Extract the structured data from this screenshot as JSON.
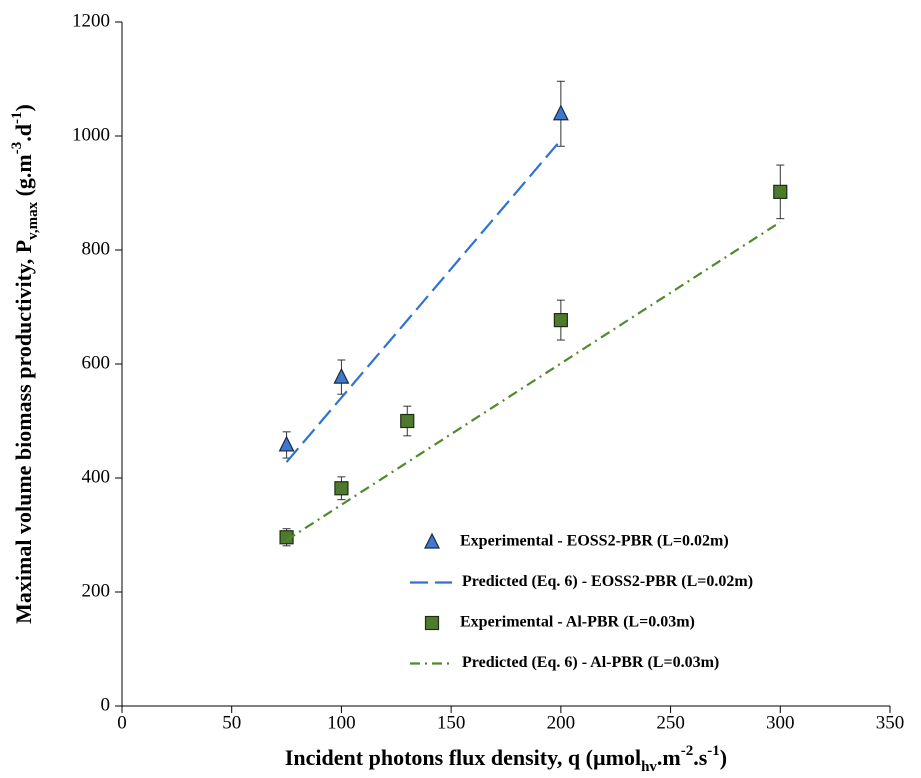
{
  "chart_data": {
    "type": "scatter",
    "xlabel_parts": [
      "Incident photons flux density, q (µmol",
      "hv",
      ".m",
      "-2",
      ".s",
      "-1",
      ")"
    ],
    "xlabel_styles": [
      "normal",
      "sub",
      "normal",
      "sup",
      "normal",
      "sup",
      "normal"
    ],
    "ylabel_parts": [
      "Maximal volume biomass productivity, P",
      "v,max",
      " (g.m",
      "-3",
      ".d",
      "-1",
      ")"
    ],
    "ylabel_styles": [
      "normal",
      "sub",
      "normal",
      "sup",
      "normal",
      "sup",
      "normal"
    ],
    "xlim": [
      0,
      350
    ],
    "xticks": [
      0,
      50,
      100,
      150,
      200,
      250,
      300,
      350
    ],
    "ylim": [
      0,
      1200
    ],
    "yticks": [
      0,
      200,
      400,
      600,
      800,
      1000,
      1200
    ],
    "grid": false,
    "legend": "lower right",
    "series": [
      {
        "name": "Experimental - EOSS2-PBR (L=0.02m)",
        "color": "#3f78cc",
        "marker": "triangle",
        "x": [
          75,
          100,
          200
        ],
        "values": [
          458,
          577,
          1039
        ],
        "errors": [
          23,
          30,
          57
        ]
      },
      {
        "name": "Predicted (Eq. 6) - EOSS2-PBR (L=0.02m)",
        "color": "#2f72d4",
        "style": "dashed",
        "x": [
          75,
          200
        ],
        "values": [
          428,
          993
        ]
      },
      {
        "name": "Experimental - Al-PBR (L=0.03m)",
        "color": "#4d7a2c",
        "marker": "square",
        "x": [
          75,
          100,
          130,
          200,
          300
        ],
        "values": [
          296,
          382,
          500,
          677,
          902
        ],
        "errors": [
          15,
          20,
          26,
          35,
          47
        ]
      },
      {
        "name": "Predicted (Eq. 6) - Al-PBR (L=0.03m)",
        "color": "#4f8a2c",
        "style": "dashdot",
        "x": [
          75,
          300
        ],
        "values": [
          291,
          849
        ]
      }
    ]
  }
}
